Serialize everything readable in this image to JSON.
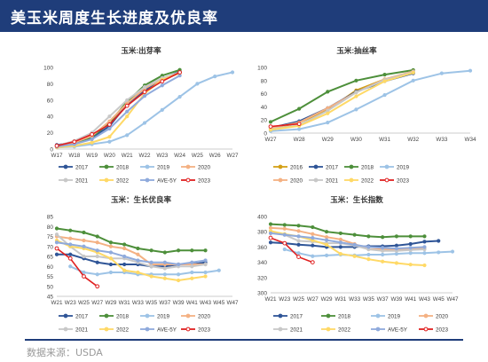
{
  "header": {
    "title": "美玉米周度生长进度及优良率"
  },
  "footer": {
    "source": "数据来源：USDA"
  },
  "colors": {
    "2016": "#d4a017",
    "2017": "#2f5597",
    "2018": "#4d8f3a",
    "2019": "#9dc3e6",
    "2020": "#f4b183",
    "2021": "#c8c8c8",
    "2022": "#ffd966",
    "AVE-5Y": "#8faadc",
    "2023": "#e02020"
  },
  "chart_data": [
    {
      "type": "line",
      "title": "玉米:出芽率",
      "categories": [
        "W17",
        "W18",
        "W19",
        "W20",
        "W21",
        "W22",
        "W23",
        "W24",
        "W25",
        "W26",
        "W27"
      ],
      "ylim": [
        0,
        100
      ],
      "yticks": [
        0,
        20,
        40,
        60,
        80,
        100
      ],
      "legend_rows": [
        [
          "2017",
          "2018",
          "2019",
          "2020"
        ],
        [
          "2021",
          "2022",
          "AVE-5Y",
          "2023"
        ]
      ],
      "series": [
        {
          "name": "2017",
          "values": [
            5,
            8,
            14,
            28,
            55,
            72,
            86,
            95,
            null,
            null,
            null
          ]
        },
        {
          "name": "2018",
          "values": [
            3,
            7,
            15,
            32,
            58,
            78,
            90,
            97,
            null,
            null,
            null
          ]
        },
        {
          "name": "2019",
          "values": [
            2,
            3,
            6,
            9,
            17,
            32,
            48,
            64,
            80,
            89,
            94
          ]
        },
        {
          "name": "2020",
          "values": [
            4,
            8,
            16,
            34,
            56,
            74,
            86,
            93,
            null,
            null,
            null
          ]
        },
        {
          "name": "2021",
          "values": [
            4,
            10,
            20,
            40,
            60,
            76,
            87,
            94,
            null,
            null,
            null
          ]
        },
        {
          "name": "2022",
          "values": [
            2,
            4,
            8,
            15,
            40,
            68,
            85,
            93,
            null,
            null,
            null
          ]
        },
        {
          "name": "AVE-5Y",
          "values": [
            3,
            6,
            12,
            25,
            46,
            65,
            78,
            90,
            null,
            null,
            null
          ]
        },
        {
          "name": "2023",
          "values": [
            4,
            9,
            18,
            30,
            53,
            70,
            83,
            94,
            null,
            null,
            null
          ]
        }
      ]
    },
    {
      "type": "line",
      "title": "玉米:抽丝率",
      "categories": [
        "W27",
        "W28",
        "W29",
        "W30",
        "W31",
        "W32",
        "W33",
        "W34"
      ],
      "ylim": [
        0,
        100
      ],
      "yticks": [
        0,
        20,
        40,
        60,
        80,
        100
      ],
      "legend_rows": [
        [
          "2016",
          "2017",
          "2018",
          "2019"
        ],
        [
          "2020",
          "2021",
          "2022",
          "2023"
        ]
      ],
      "series": [
        {
          "name": "2016",
          "values": [
            6,
            16,
            35,
            65,
            82,
            92,
            null,
            null
          ]
        },
        {
          "name": "2017",
          "values": [
            8,
            18,
            38,
            63,
            79,
            91,
            null,
            null
          ]
        },
        {
          "name": "2018",
          "values": [
            17,
            37,
            63,
            80,
            89,
            96,
            null,
            null
          ]
        },
        {
          "name": "2019",
          "values": [
            3,
            6,
            16,
            36,
            58,
            80,
            91,
            95
          ]
        },
        {
          "name": "2020",
          "values": [
            8,
            16,
            38,
            62,
            82,
            94,
            null,
            null
          ]
        },
        {
          "name": "2021",
          "values": [
            6,
            12,
            34,
            62,
            81,
            93,
            null,
            null
          ]
        },
        {
          "name": "2022",
          "values": [
            5,
            11,
            30,
            56,
            79,
            92,
            null,
            null
          ]
        },
        {
          "name": "2023",
          "values": [
            10,
            14,
            null,
            null,
            null,
            null,
            null,
            null
          ]
        }
      ]
    },
    {
      "type": "line",
      "title": "玉米：生长优良率",
      "categories": [
        "W21",
        "W23",
        "W25",
        "W27",
        "W29",
        "W31",
        "W33",
        "W35",
        "W37",
        "W39",
        "W41",
        "W43",
        "W45",
        "W47"
      ],
      "ylim": [
        45,
        85
      ],
      "yticks": [
        45,
        50,
        55,
        60,
        65,
        70,
        75,
        80,
        85
      ],
      "legend_rows": [
        [
          "2017",
          "2018",
          "2019",
          "2020"
        ],
        [
          "2021",
          "2022",
          "AVE-5Y",
          "2023"
        ]
      ],
      "series": [
        {
          "name": "2017",
          "values": [
            66,
            66,
            64,
            62,
            61,
            61,
            61,
            60,
            60,
            61,
            61,
            62,
            null,
            null
          ]
        },
        {
          "name": "2018",
          "values": [
            79,
            78,
            77,
            75,
            72,
            71,
            69,
            68,
            67,
            68,
            68,
            68,
            null,
            null
          ]
        },
        {
          "name": "2019",
          "values": [
            null,
            60,
            57,
            56,
            57,
            57,
            56,
            56,
            56,
            56,
            57,
            57,
            58,
            null
          ]
        },
        {
          "name": "2020",
          "values": [
            75,
            74,
            73,
            72,
            70,
            69,
            66,
            61,
            61,
            61,
            61,
            61,
            null,
            null
          ]
        },
        {
          "name": "2021",
          "values": [
            76,
            70,
            65,
            65,
            64,
            64,
            62,
            60,
            59,
            60,
            60,
            61,
            null,
            null
          ]
        },
        {
          "name": "2022",
          "values": [
            73,
            70,
            69,
            67,
            64,
            58,
            57,
            55,
            54,
            53,
            54,
            55,
            null,
            null
          ]
        },
        {
          "name": "AVE-5Y",
          "values": [
            72,
            71,
            70,
            68,
            67,
            65,
            63,
            62,
            62,
            61,
            62,
            63,
            null,
            null
          ]
        },
        {
          "name": "2023",
          "values": [
            69,
            64,
            55,
            50,
            null,
            null,
            null,
            null,
            null,
            null,
            null,
            null,
            null,
            null
          ]
        }
      ]
    },
    {
      "type": "line",
      "title": "玉米：生长指数",
      "categories": [
        "W21",
        "W23",
        "W25",
        "W27",
        "W29",
        "W31",
        "W33",
        "W35",
        "W37",
        "W39",
        "W41",
        "W43",
        "W45",
        "W47"
      ],
      "ylim": [
        300,
        400
      ],
      "yticks": [
        300,
        320,
        340,
        360,
        380,
        400
      ],
      "legend_rows": [
        [
          "2017",
          "2018",
          "2019",
          "2020"
        ],
        [
          "2021",
          "2022",
          "AVE-5Y",
          "2023"
        ]
      ],
      "series": [
        {
          "name": "2017",
          "values": [
            366,
            365,
            363,
            362,
            360,
            360,
            360,
            361,
            361,
            362,
            364,
            367,
            368,
            null
          ]
        },
        {
          "name": "2018",
          "values": [
            390,
            389,
            388,
            386,
            380,
            378,
            376,
            374,
            373,
            374,
            374,
            374,
            null,
            null
          ]
        },
        {
          "name": "2019",
          "values": [
            null,
            357,
            352,
            348,
            349,
            350,
            349,
            350,
            350,
            351,
            352,
            352,
            353,
            354
          ]
        },
        {
          "name": "2020",
          "values": [
            385,
            384,
            381,
            377,
            373,
            370,
            364,
            357,
            357,
            357,
            357,
            358,
            null,
            null
          ]
        },
        {
          "name": "2021",
          "values": [
            381,
            376,
            368,
            367,
            365,
            365,
            362,
            357,
            355,
            355,
            356,
            357,
            null,
            null
          ]
        },
        {
          "name": "2022",
          "values": [
            381,
            377,
            374,
            369,
            363,
            351,
            348,
            344,
            341,
            339,
            337,
            336,
            null,
            null
          ]
        },
        {
          "name": "AVE-5Y",
          "values": [
            378,
            376,
            374,
            372,
            369,
            366,
            363,
            360,
            359,
            358,
            359,
            360,
            null,
            null
          ]
        },
        {
          "name": "2023",
          "values": [
            372,
            365,
            347,
            340,
            null,
            null,
            null,
            null,
            null,
            null,
            null,
            null,
            null,
            null
          ]
        }
      ]
    }
  ]
}
